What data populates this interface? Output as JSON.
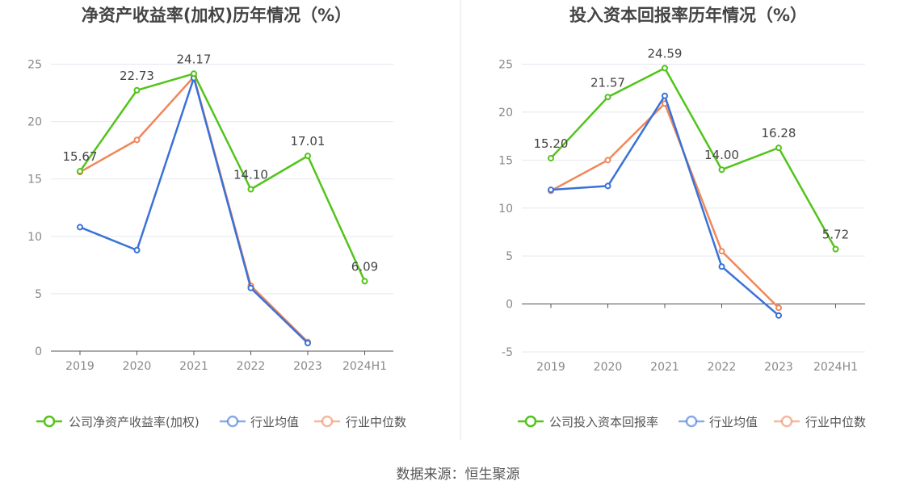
{
  "footer": {
    "source": "数据来源：恒生聚源"
  },
  "chart_data": [
    {
      "type": "line",
      "title": "净资产收益率(加权)历年情况（%）",
      "categories": [
        "2019",
        "2020",
        "2021",
        "2022",
        "2023",
        "2024H1"
      ],
      "ylim": [
        0,
        25
      ],
      "yticks": [
        0,
        5,
        10,
        15,
        20,
        25
      ],
      "grid": true,
      "legend_position": "bottom",
      "series": [
        {
          "name": "公司净资产收益率(加权)",
          "color": "#52c41a",
          "values": [
            15.67,
            22.73,
            24.17,
            14.1,
            17.01,
            6.09
          ],
          "labels": [
            "15.67",
            "22.73",
            "24.17",
            "14.10",
            "17.01",
            "6.09"
          ]
        },
        {
          "name": "行业均值",
          "color": "#3a72d8",
          "values": [
            10.8,
            8.8,
            23.8,
            5.5,
            0.7,
            null
          ]
        },
        {
          "name": "行业中位数",
          "color": "#f0875a",
          "values": [
            15.6,
            18.4,
            23.9,
            5.7,
            0.8,
            null
          ]
        }
      ]
    },
    {
      "type": "line",
      "title": "投入资本回报率历年情况（%）",
      "categories": [
        "2019",
        "2020",
        "2021",
        "2022",
        "2023",
        "2024H1"
      ],
      "ylim": [
        -5,
        25
      ],
      "yticks": [
        -5,
        0,
        5,
        10,
        15,
        20,
        25
      ],
      "grid": true,
      "legend_position": "bottom",
      "series": [
        {
          "name": "公司投入资本回报率",
          "color": "#52c41a",
          "values": [
            15.2,
            21.57,
            24.59,
            14.0,
            16.28,
            5.72
          ],
          "labels": [
            "15.20",
            "21.57",
            "24.59",
            "14.00",
            "16.28",
            "5.72"
          ]
        },
        {
          "name": "行业均值",
          "color": "#3a72d8",
          "values": [
            11.9,
            12.3,
            21.7,
            3.9,
            -1.2,
            null
          ]
        },
        {
          "name": "行业中位数",
          "color": "#f0875a",
          "values": [
            11.8,
            15.0,
            20.9,
            5.5,
            -0.4,
            null
          ]
        }
      ]
    }
  ]
}
